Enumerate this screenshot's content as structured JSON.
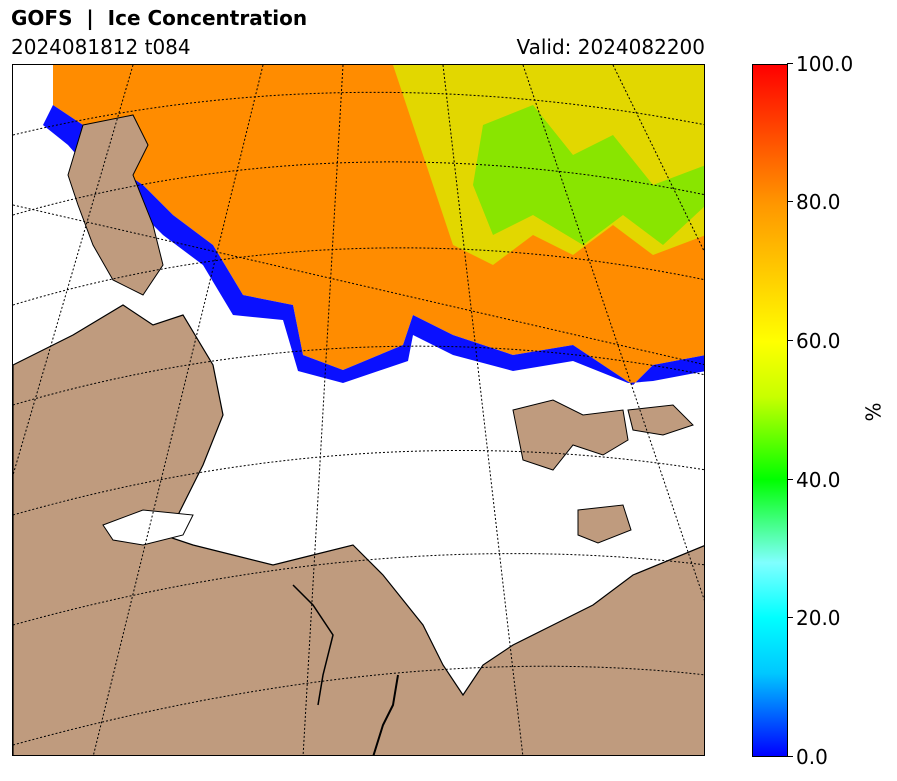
{
  "header": {
    "title": "GOFS  |  Ice Concentration",
    "run": "2024081812 t084",
    "valid": "Valid: 2024082200"
  },
  "map": {
    "variable": "Ice Concentration",
    "colors": {
      "land": "#bf9b7e",
      "ocean": "#ffffff",
      "coast": "#000000",
      "grid": "#000000"
    }
  },
  "colorbar": {
    "label": "%",
    "ticks": [
      "0.0",
      "20.0",
      "40.0",
      "60.0",
      "80.0",
      "100.0"
    ],
    "range": [
      0,
      100
    ],
    "gradient": [
      "#0000ff",
      "#00c8ff",
      "#00ffff",
      "#80ffff",
      "#00ff00",
      "#c8ff00",
      "#ffff00",
      "#ff9600",
      "#ff0000"
    ]
  }
}
